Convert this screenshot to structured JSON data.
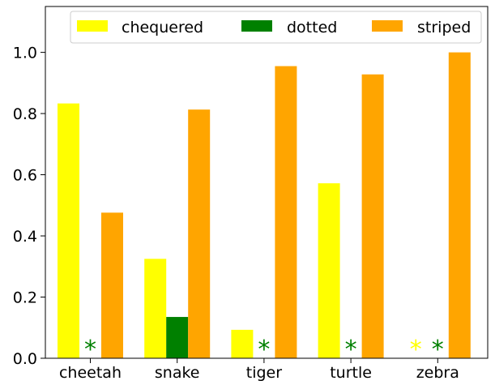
{
  "chart_data": {
    "type": "bar",
    "categories": [
      "cheetah",
      "snake",
      "tiger",
      "turtle",
      "zebra"
    ],
    "series": [
      {
        "name": "chequered",
        "color": "#ffff00",
        "values": [
          0.833,
          0.325,
          0.093,
          0.572,
          0
        ]
      },
      {
        "name": "dotted",
        "color": "#008000",
        "values": [
          0,
          0.135,
          0,
          0,
          0
        ]
      },
      {
        "name": "striped",
        "color": "#ffa500",
        "values": [
          0.476,
          0.813,
          0.955,
          0.928,
          1.0
        ]
      }
    ],
    "zero_markers": [
      {
        "category": "cheetah",
        "series": "dotted",
        "symbol": "*",
        "color": "#008000"
      },
      {
        "category": "tiger",
        "series": "dotted",
        "symbol": "*",
        "color": "#008000"
      },
      {
        "category": "turtle",
        "series": "dotted",
        "symbol": "*",
        "color": "#008000"
      },
      {
        "category": "zebra",
        "series": "chequered",
        "symbol": "*",
        "color": "#ffff00"
      },
      {
        "category": "zebra",
        "series": "dotted",
        "symbol": "*",
        "color": "#008000"
      }
    ],
    "yticks": [
      "0.0",
      "0.2",
      "0.4",
      "0.6",
      "0.8",
      "1.0"
    ],
    "ylim": [
      0,
      1.15
    ],
    "grid": false,
    "legend": {
      "placement": "top-right",
      "columns": 3
    }
  }
}
